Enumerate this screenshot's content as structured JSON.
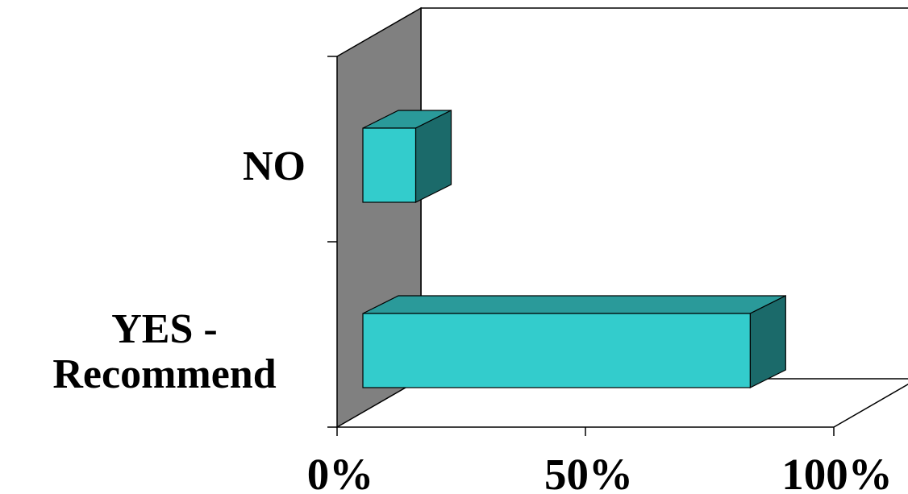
{
  "chart_data": {
    "type": "bar",
    "orientation": "horizontal",
    "style": "3d",
    "categories": [
      "NO",
      "YES - Recommend"
    ],
    "category_label_lines": [
      [
        "NO"
      ],
      [
        "YES -",
        "Recommend"
      ]
    ],
    "values": [
      12,
      88
    ],
    "xlim": [
      0,
      100
    ],
    "x_ticks": [
      0,
      50,
      100
    ],
    "x_tick_labels": [
      "0%",
      "50%",
      "100%"
    ],
    "title": "",
    "xlabel": "",
    "ylabel": "",
    "grid": false,
    "legend": "none",
    "colors": {
      "bar_front": "#33CCCC",
      "bar_top": "#2A9A9A",
      "bar_side": "#1B6A6A",
      "back_wall": "#FFFFFF",
      "side_wall": "#808080",
      "outline": "#000000"
    }
  }
}
